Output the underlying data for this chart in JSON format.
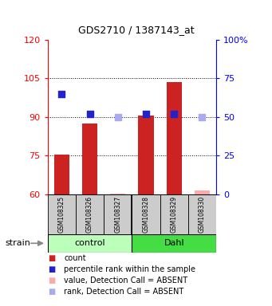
{
  "title": "GDS2710 / 1387143_at",
  "samples": [
    "GSM108325",
    "GSM108326",
    "GSM108327",
    "GSM108328",
    "GSM108329",
    "GSM108330"
  ],
  "ylim_left": [
    60,
    120
  ],
  "ylim_right": [
    0,
    100
  ],
  "yticks_left": [
    60,
    75,
    90,
    105,
    120
  ],
  "yticks_right": [
    0,
    25,
    50,
    75,
    100
  ],
  "ytick_labels_right": [
    "0",
    "25",
    "50",
    "75",
    "100%"
  ],
  "bar_values": [
    75.5,
    87.5,
    60.3,
    90.5,
    103.5,
    61.5
  ],
  "bar_absent": [
    false,
    false,
    true,
    false,
    false,
    true
  ],
  "rank_values": [
    65,
    52,
    50,
    52,
    52,
    50
  ],
  "rank_absent": [
    false,
    false,
    true,
    false,
    false,
    true
  ],
  "bar_color_present": "#cc2222",
  "bar_color_absent": "#ffaaaa",
  "rank_color_present": "#2222cc",
  "rank_color_absent": "#aaaaee",
  "group_light_color": "#bbffbb",
  "group_dark_color": "#44dd44",
  "dotted_yticks": [
    75,
    90,
    105
  ],
  "bar_width": 0.55,
  "rank_marker_size": 35,
  "sample_box_color": "#cccccc",
  "title_fontsize": 9,
  "axis_fontsize": 8,
  "legend_fontsize": 7
}
